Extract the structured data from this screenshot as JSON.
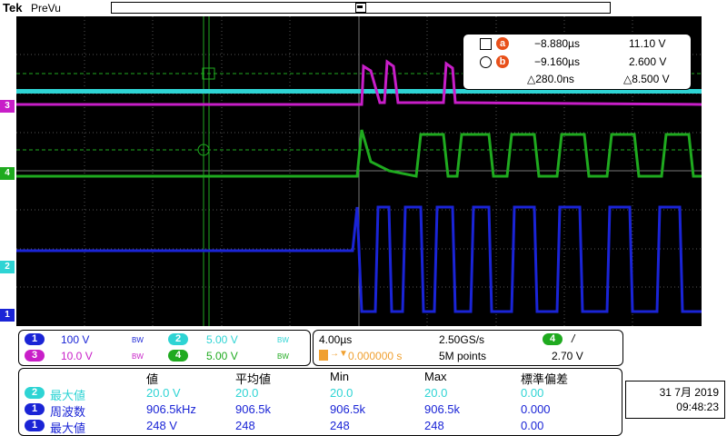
{
  "header": {
    "brand": "Tek",
    "mode": "PreVu"
  },
  "markers": {
    "b": "b",
    "a": "a",
    "trigger": "T"
  },
  "channel_tags": {
    "ch3": "3",
    "ch4": "4",
    "ch2": "2",
    "ch1": "1"
  },
  "cursor_readout": {
    "a_time": "−8.880µs",
    "a_value": "11.10 V",
    "b_time": "−9.160µs",
    "b_value": "2.600 V",
    "delta_time": "△280.0ns",
    "delta_value": "△8.500 V"
  },
  "vertical": {
    "ch1": {
      "num": "1",
      "scale": "100 V",
      "color": "#1a24d6"
    },
    "ch2": {
      "num": "2",
      "scale": "5.00 V",
      "color": "#2ed4d4"
    },
    "ch3": {
      "num": "3",
      "scale": "10.0 V",
      "color": "#c81ec8"
    },
    "ch4": {
      "num": "4",
      "scale": "5.00 V",
      "color": "#1faa1f"
    },
    "bw": "BW"
  },
  "horizontal": {
    "time_div": "4.00µs",
    "sample_rate": "2.50GS/s",
    "trigger_pos": "0.000000 s",
    "record_length": "5M points",
    "trigger_ch": "4",
    "trigger_slope": "/",
    "trigger_level": "2.70 V"
  },
  "measurements": {
    "headers": [
      "値",
      "平均値",
      "Min",
      "Max",
      "標準偏差"
    ],
    "rows": [
      {
        "ch": "2",
        "name": "最大値",
        "value": "20.0 V",
        "mean": "20.0",
        "min": "20.0",
        "max": "20.0",
        "std": "0.00"
      },
      {
        "ch": "1",
        "name": "周波数",
        "value": "906.5kHz",
        "mean": "906.5k",
        "min": "906.5k",
        "max": "906.5k",
        "std": "0.000"
      },
      {
        "ch": "1",
        "name": "最大値",
        "value": "248 V",
        "mean": "248",
        "min": "248",
        "max": "248",
        "std": "0.00"
      }
    ]
  },
  "datetime": {
    "date": "31 7月 2019",
    "time": "09:48:23"
  }
}
